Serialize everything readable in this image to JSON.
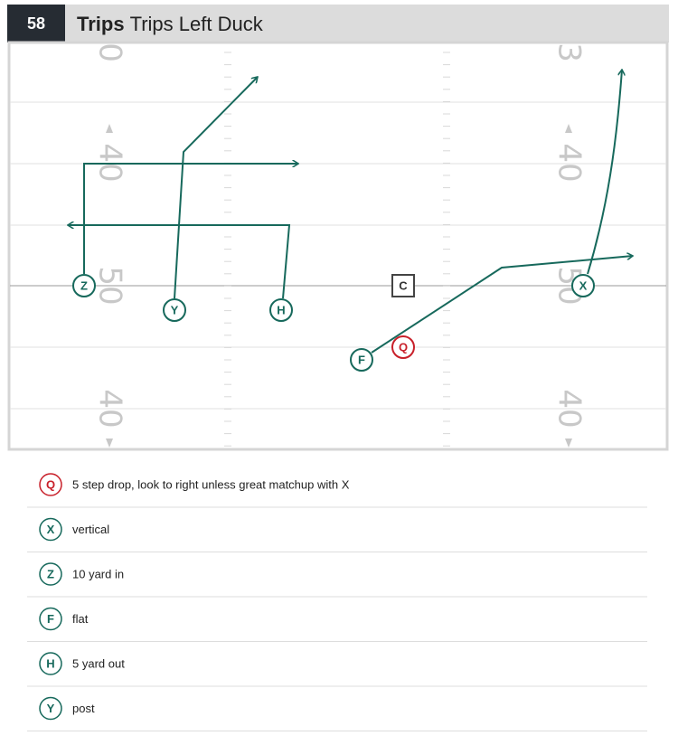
{
  "header": {
    "number": "58",
    "title": "Trips",
    "subtitle": "Trips Left Duck"
  },
  "field": {
    "yard_numbers": [
      "0",
      "40",
      "50",
      "40",
      "3",
      "40",
      "50",
      "40"
    ]
  },
  "players": [
    {
      "label": "Z"
    },
    {
      "label": "Y"
    },
    {
      "label": "H"
    },
    {
      "label": "C"
    },
    {
      "label": "Q"
    },
    {
      "label": "F"
    },
    {
      "label": "X"
    }
  ],
  "notes": [
    {
      "label": "Q",
      "text": "5 step drop, look to right unless great matchup with X"
    },
    {
      "label": "X",
      "text": "vertical"
    },
    {
      "label": "Z",
      "text": "10 yard in"
    },
    {
      "label": "F",
      "text": "flat"
    },
    {
      "label": "H",
      "text": "5 yard out"
    },
    {
      "label": "Y",
      "text": "post"
    }
  ]
}
